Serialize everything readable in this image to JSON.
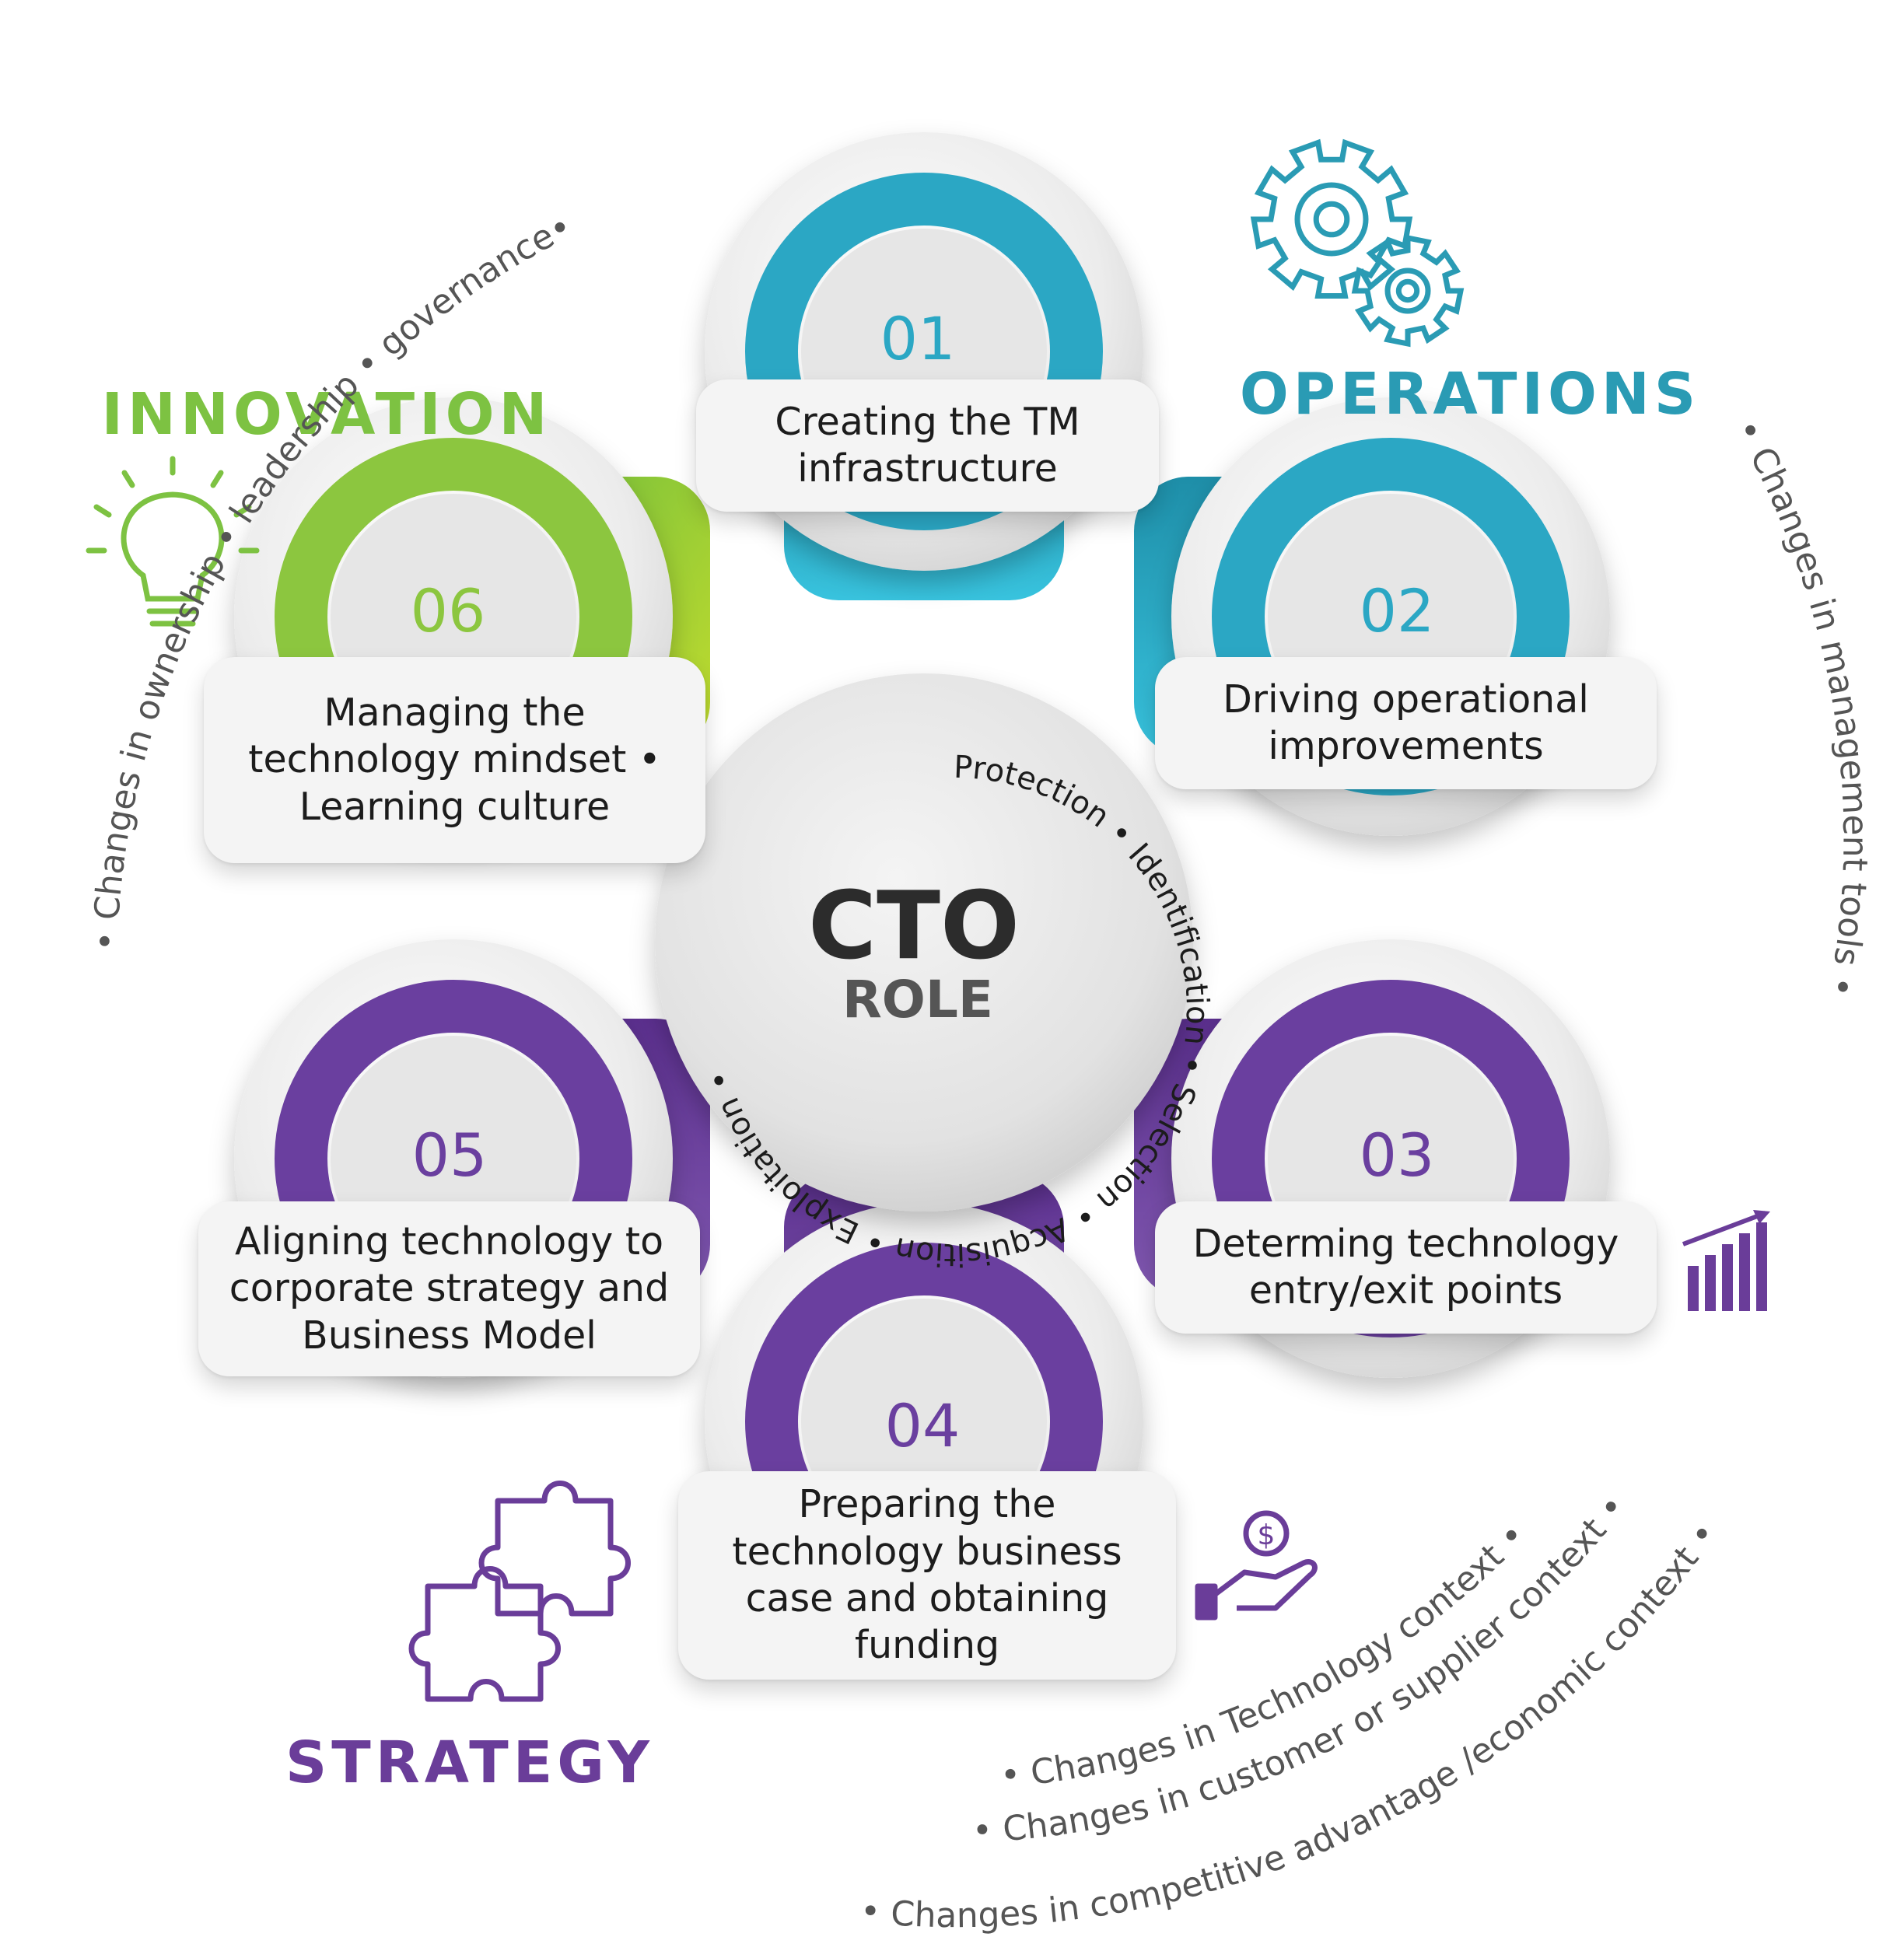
{
  "center": {
    "title": "CTO",
    "subtitle": "ROLE",
    "ring_words": [
      "Protection",
      "Identification",
      "Selection",
      "Acquisition",
      "Exploitation"
    ]
  },
  "categories": {
    "innovation": {
      "label": "INNOVATION",
      "color": "#7dc242",
      "icon": "lightbulb-icon"
    },
    "operations": {
      "label": "OPERATIONS",
      "color": "#2a9bb4",
      "icon": "gears-icon"
    },
    "strategy": {
      "label": "STRATEGY",
      "color": "#6a3d99",
      "icon": "puzzle-icon"
    }
  },
  "steps": [
    {
      "number": "01",
      "text": "Creating the TM\ninfrastructure",
      "color": "#2ba7c4"
    },
    {
      "number": "02",
      "text": "Driving operational\nimprovements",
      "color": "#2ba7c4"
    },
    {
      "number": "03",
      "text": "Determing technology\nentry/exit points",
      "color": "#6a3f9f"
    },
    {
      "number": "04",
      "text": "Preparing the\ntechnology business\ncase and obtaining\nfunding",
      "color": "#6a3f9f"
    },
    {
      "number": "05",
      "text": "Aligning technology to\ncorporate strategy and\nBusiness Model",
      "color": "#6a3f9f"
    },
    {
      "number": "06",
      "text": "Managing the\ntechnology mindset •\nLearning culture",
      "color": "#8cc63f"
    }
  ],
  "outer_labels": {
    "left": "• Changes in ownership • leadership • governance•",
    "right": "• Changes in management tools •",
    "bottom": [
      "• Changes in Technology context •",
      "• Changes in customer or supplier context •",
      "• Changes in competitive advantage /economic context •"
    ]
  },
  "extra_icons": {
    "chart": "growth-chart-icon",
    "money": "money-hand-icon"
  }
}
